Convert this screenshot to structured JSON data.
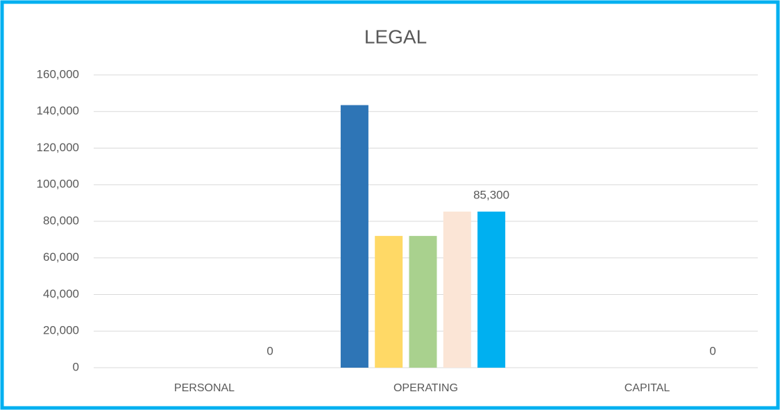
{
  "chart_data": {
    "type": "bar",
    "title": "LEGAL",
    "categories": [
      "PERSONAL",
      "OPERATING",
      "CAPITAL"
    ],
    "series": [
      {
        "color": "#2e75b6",
        "values": [
          0,
          143500,
          0
        ]
      },
      {
        "color": "#ffd966",
        "values": [
          0,
          72000,
          0
        ]
      },
      {
        "color": "#a9d18e",
        "values": [
          0,
          72000,
          0
        ]
      },
      {
        "color": "#fbe5d6",
        "values": [
          0,
          85300,
          0
        ]
      },
      {
        "color": "#00b0f0",
        "values": [
          0,
          85300,
          0
        ],
        "value_labels": [
          "0",
          "85,300",
          "0"
        ]
      }
    ],
    "ylim": [
      0,
      160000
    ],
    "yticks": [
      0,
      {
        "value": 20000,
        "label": "20,000"
      },
      {
        "value": 40000,
        "label": "40,000"
      },
      {
        "value": 60000,
        "label": "60,000"
      },
      {
        "value": 80000,
        "label": "80,000"
      },
      {
        "value": 100000,
        "label": "100,000"
      },
      {
        "value": 120000,
        "label": "120,000"
      },
      {
        "value": 140000,
        "label": "140,000"
      },
      {
        "value": 160000,
        "label": "160,000"
      }
    ],
    "grid": true
  }
}
